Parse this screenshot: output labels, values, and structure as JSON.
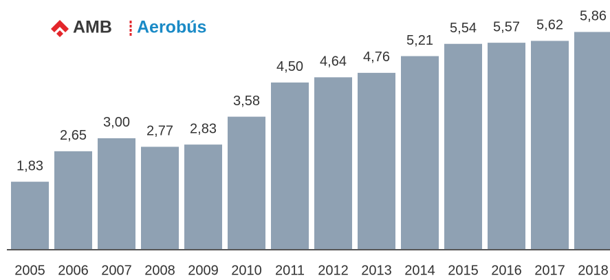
{
  "logo": {
    "brand": "AMB",
    "product": "Aerobús"
  },
  "chart_data": {
    "type": "bar",
    "categories": [
      "2005",
      "2006",
      "2007",
      "2008",
      "2009",
      "2010",
      "2011",
      "2012",
      "2013",
      "2014",
      "2015",
      "2016",
      "2017",
      "2018"
    ],
    "values": [
      1.83,
      2.65,
      3.0,
      2.77,
      2.83,
      3.58,
      4.5,
      4.64,
      4.76,
      5.21,
      5.54,
      5.57,
      5.62,
      5.86
    ],
    "value_labels": [
      "1,83",
      "2,65",
      "3,00",
      "2,77",
      "2,83",
      "3,58",
      "4,50",
      "4,64",
      "4,76",
      "5,21",
      "5,54",
      "5,57",
      "5,62",
      "5,86"
    ],
    "color": "#8fa1b3",
    "ylim": [
      0,
      6.72
    ]
  }
}
